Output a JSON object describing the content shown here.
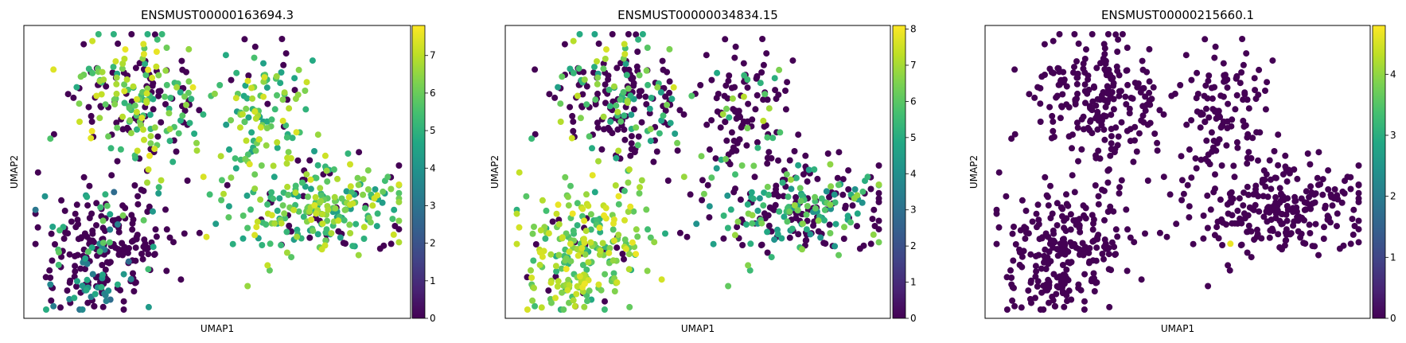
{
  "chart_data": [
    {
      "type": "scatter",
      "title": "ENSMUST00000163694.3",
      "xlabel": "UMAP1",
      "ylabel": "UMAP2",
      "grid": false,
      "colorbar": {
        "colormap": "viridis",
        "min": 0,
        "max": 7.8,
        "ticks": [
          0,
          1,
          2,
          3,
          4,
          5,
          6,
          7
        ]
      },
      "value_profile": "mixed"
    },
    {
      "type": "scatter",
      "title": "ENSMUST00000034834.15",
      "xlabel": "UMAP1",
      "ylabel": "UMAP2",
      "grid": false,
      "colorbar": {
        "colormap": "viridis",
        "min": 0,
        "max": 8.1,
        "ticks": [
          0,
          1,
          2,
          3,
          4,
          5,
          6,
          7,
          8
        ]
      },
      "value_profile": "inverse"
    },
    {
      "type": "scatter",
      "title": "ENSMUST00000215660.1",
      "xlabel": "UMAP1",
      "ylabel": "UMAP2",
      "grid": false,
      "colorbar": {
        "colormap": "viridis",
        "min": 0,
        "max": 4.8,
        "ticks": [
          0,
          1,
          2,
          3,
          4
        ]
      },
      "value_profile": "sparse"
    }
  ]
}
